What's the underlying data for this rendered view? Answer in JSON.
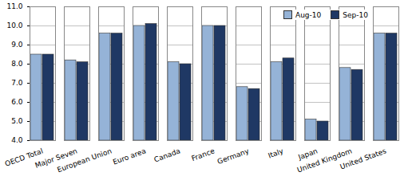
{
  "chart_data": {
    "type": "bar",
    "categories": [
      "OECD Total",
      "Major Seven",
      "European Union",
      "Euro area",
      "Canada",
      "France",
      "Germany",
      "Italy",
      "Japan",
      "United Kingdom",
      "United States"
    ],
    "series": [
      {
        "name": "Aug-10",
        "color": "#95b3d7",
        "values": [
          8.5,
          8.2,
          9.6,
          10.0,
          8.1,
          10.0,
          6.8,
          8.1,
          5.1,
          7.8,
          9.6
        ]
      },
      {
        "name": "Sep-10",
        "color": "#1f3864",
        "values": [
          8.5,
          8.1,
          9.6,
          10.1,
          8.0,
          10.0,
          6.7,
          8.3,
          5.0,
          7.7,
          9.6
        ]
      }
    ],
    "ylim": [
      4,
      11
    ],
    "yticks": [
      {
        "value": 4,
        "label": "4.0"
      },
      {
        "value": 5,
        "label": "5.0"
      },
      {
        "value": 6,
        "label": "6.0"
      },
      {
        "value": 7,
        "label": "7.0"
      },
      {
        "value": 8,
        "label": "8.0"
      },
      {
        "value": 9,
        "label": "9.0"
      },
      {
        "value": 10,
        "label": "10.0"
      },
      {
        "value": 11,
        "label": "11.0"
      }
    ],
    "grid": true,
    "legend": "top-right"
  }
}
